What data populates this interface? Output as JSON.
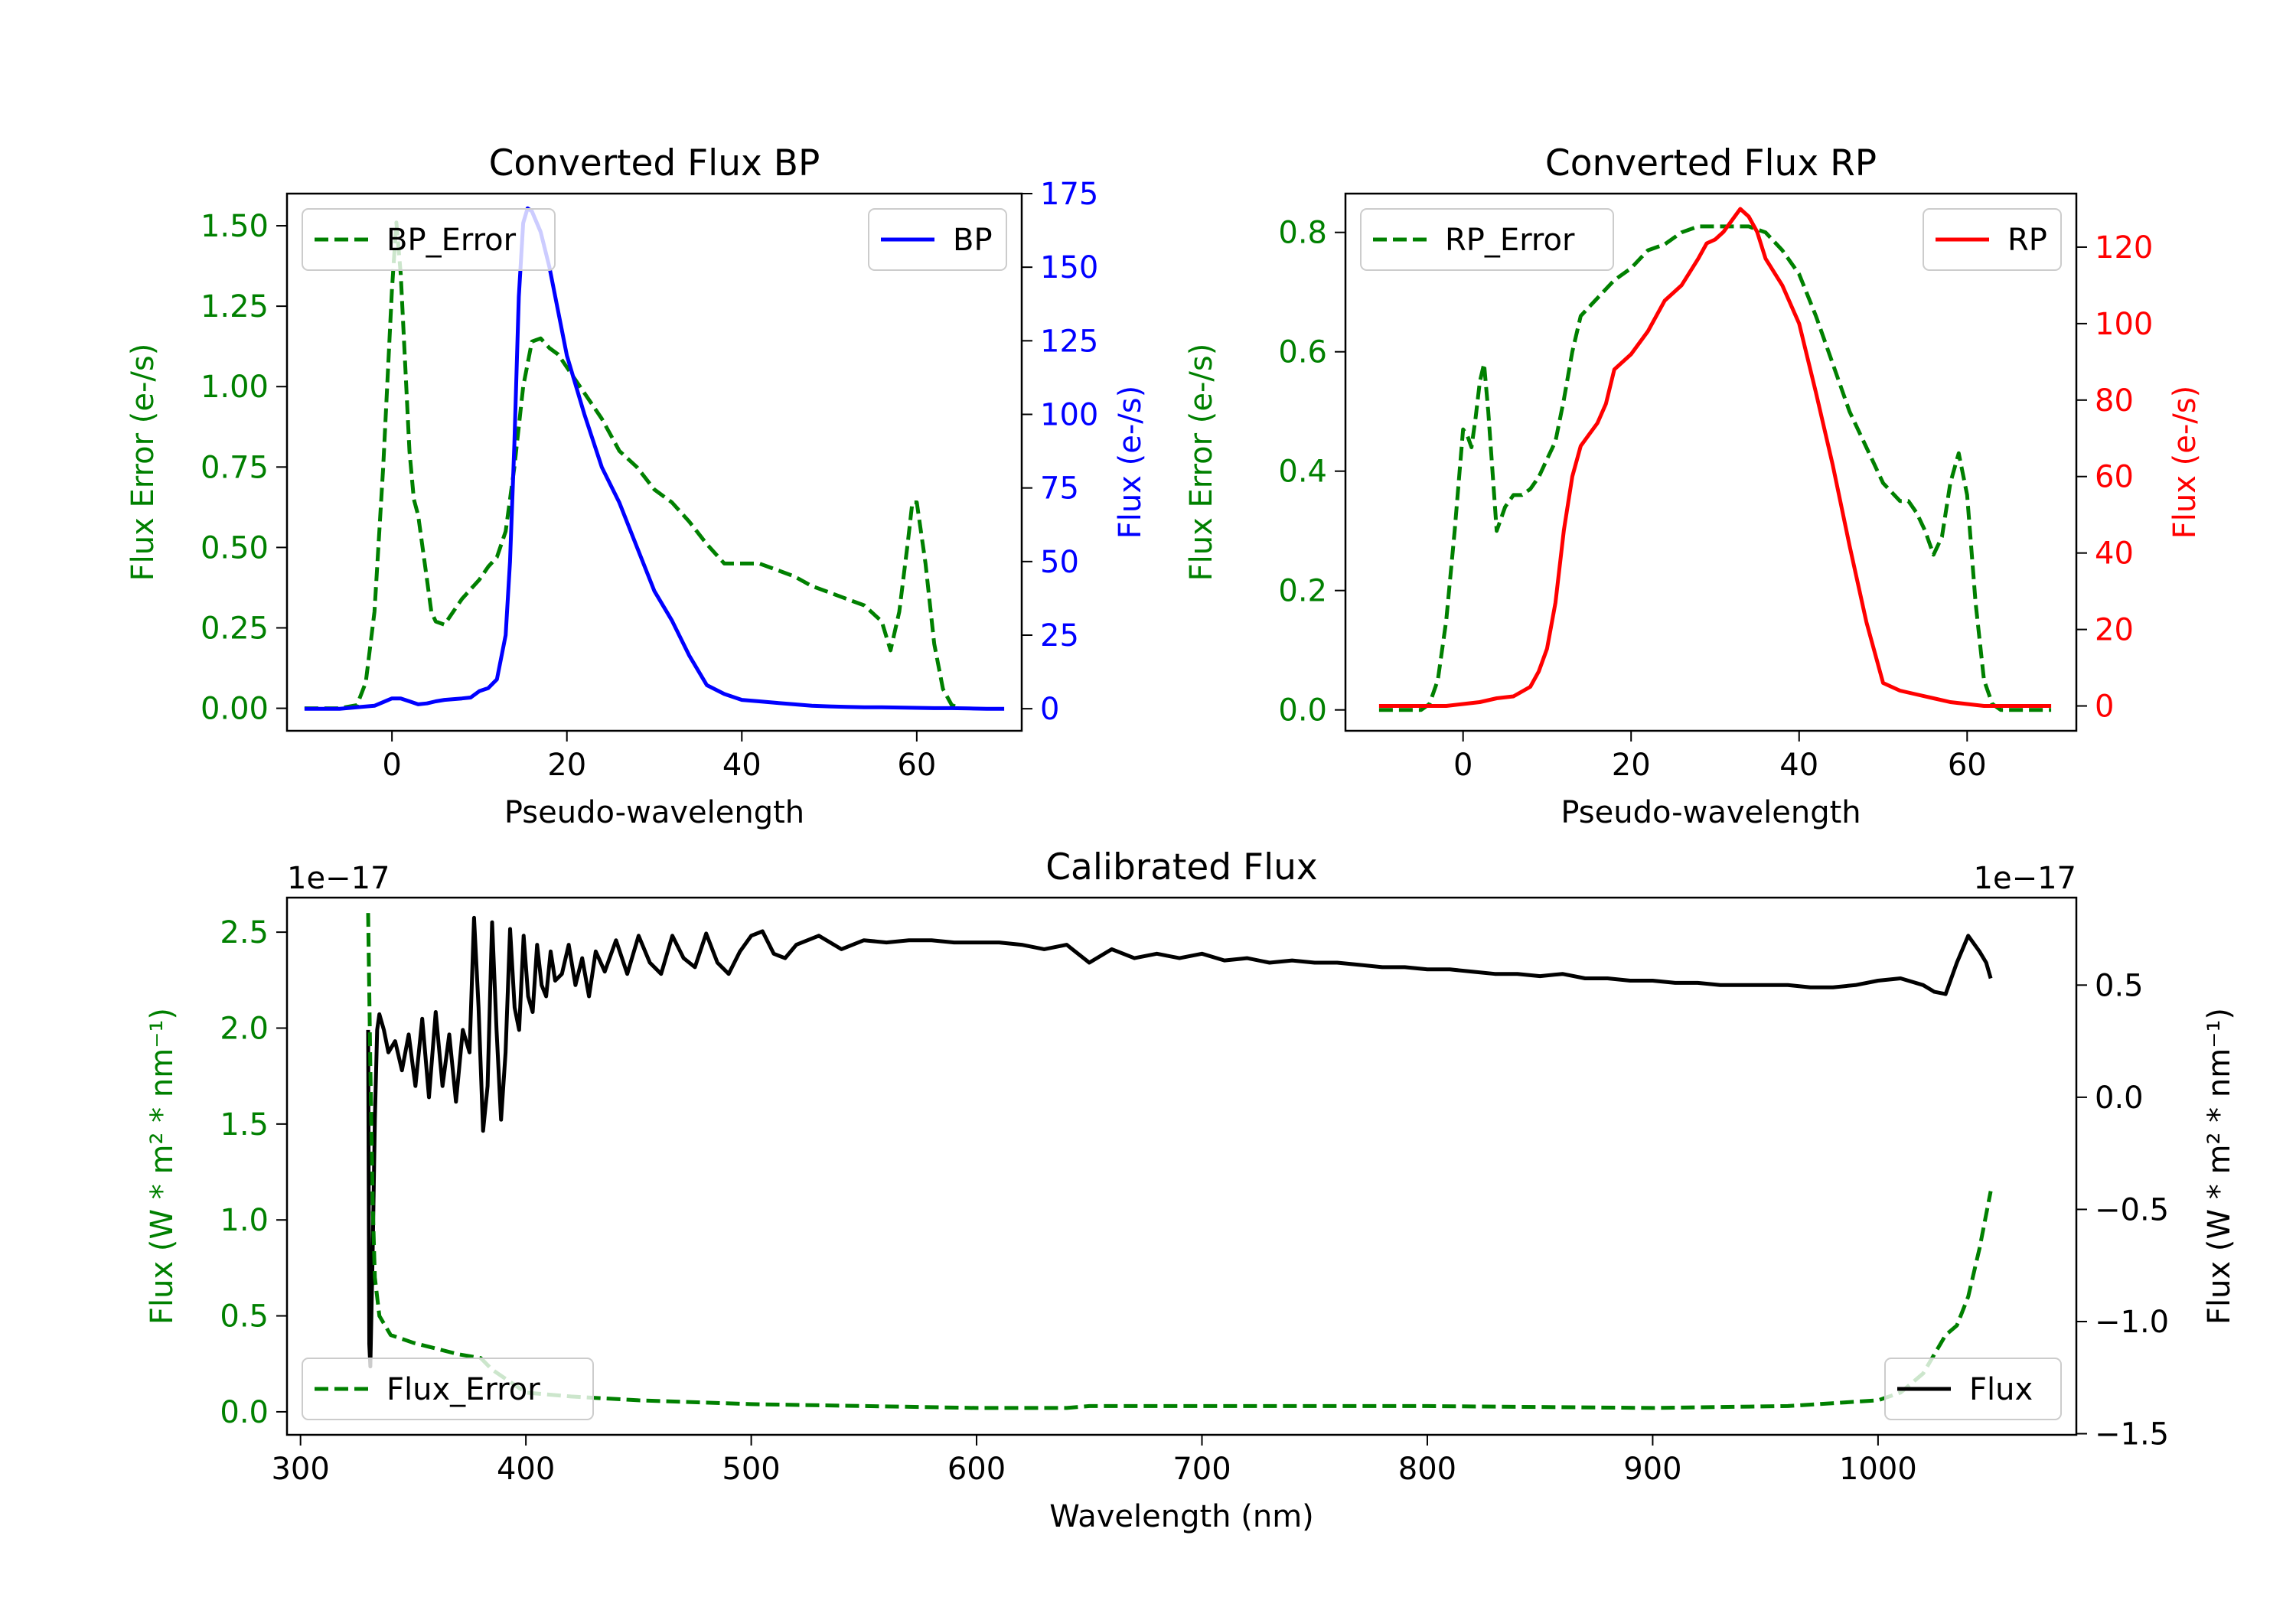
{
  "chart_data": [
    {
      "type": "line",
      "title": "Converted Flux BP",
      "xlabel": "Pseudo-wavelength",
      "ylabel_left": "Flux Error (e-/s)",
      "ylabel_right": "Flux (e-/s)",
      "xlim": [
        -12,
        72
      ],
      "ylim_left": [
        -0.07,
        1.6
      ],
      "ylim_right": [
        -7.5,
        175
      ],
      "x_ticks": [
        0,
        20,
        40,
        60
      ],
      "y_ticks_left": [
        "0.00",
        "0.25",
        "0.50",
        "0.75",
        "1.00",
        "1.25",
        "1.50"
      ],
      "y_ticks_right": [
        0,
        25,
        50,
        75,
        100,
        125,
        150,
        175
      ],
      "legend_left_position": "upper left",
      "legend_right_position": "upper right",
      "series": [
        {
          "name": "BP_Error",
          "axis": "left",
          "style": "dashed",
          "color": "#008000",
          "x": [
            -10,
            -6,
            -4,
            -3,
            -2,
            -1,
            0,
            0.5,
            1,
            2,
            2.5,
            3,
            4,
            4.5,
            5,
            6,
            7,
            8,
            9,
            10,
            11,
            12,
            13,
            14,
            15,
            16,
            17,
            18,
            19,
            20,
            22,
            24,
            26,
            28,
            30,
            32,
            34,
            36,
            38,
            40,
            42,
            44,
            46,
            48,
            50,
            52,
            54,
            56,
            57,
            58,
            59,
            59.5,
            60,
            61,
            62,
            63,
            64,
            65
          ],
          "values": [
            0.0,
            0.0,
            0.01,
            0.08,
            0.3,
            0.75,
            1.3,
            1.51,
            1.35,
            0.8,
            0.65,
            0.6,
            0.4,
            0.3,
            0.27,
            0.26,
            0.3,
            0.34,
            0.37,
            0.4,
            0.44,
            0.47,
            0.55,
            0.75,
            1.0,
            1.14,
            1.15,
            1.12,
            1.1,
            1.06,
            0.98,
            0.9,
            0.8,
            0.75,
            0.68,
            0.64,
            0.58,
            0.51,
            0.45,
            0.45,
            0.45,
            0.43,
            0.41,
            0.38,
            0.36,
            0.34,
            0.32,
            0.27,
            0.18,
            0.3,
            0.52,
            0.64,
            0.64,
            0.45,
            0.2,
            0.06,
            0.01,
            0.0
          ]
        },
        {
          "name": "BP",
          "axis": "right",
          "style": "solid",
          "color": "#0000ff",
          "x": [
            -10,
            -6,
            -4,
            -2,
            0,
            1,
            2,
            3,
            4,
            5,
            6,
            8,
            9,
            10,
            11,
            12,
            13,
            13.5,
            14,
            14.5,
            15,
            15.5,
            16,
            17,
            18,
            19,
            20,
            22,
            24,
            26,
            28,
            30,
            32,
            34,
            36,
            38,
            40,
            42,
            44,
            46,
            48,
            50,
            52,
            54,
            56,
            58,
            60,
            62,
            64,
            66,
            68,
            70
          ],
          "values": [
            0,
            0,
            0.5,
            1,
            3.5,
            3.5,
            2.5,
            1.5,
            1.8,
            2.5,
            3,
            3.5,
            3.8,
            6,
            7,
            10,
            25,
            50,
            90,
            140,
            165,
            170,
            169,
            162,
            150,
            135,
            120,
            100,
            82,
            70,
            55,
            40,
            30,
            18,
            8,
            5,
            3,
            2.5,
            2,
            1.5,
            1,
            0.8,
            0.6,
            0.5,
            0.5,
            0.4,
            0.3,
            0.2,
            0.2,
            0.1,
            0,
            0
          ]
        }
      ]
    },
    {
      "type": "line",
      "title": "Converted Flux RP",
      "xlabel": "Pseudo-wavelength",
      "ylabel_left": "Flux Error (e-/s)",
      "ylabel_right": "Flux (e-/s)",
      "xlim": [
        -14,
        73
      ],
      "ylim_left": [
        -0.035,
        0.865
      ],
      "ylim_right": [
        -6.5,
        134
      ],
      "x_ticks": [
        0,
        20,
        40,
        60
      ],
      "y_ticks_left": [
        "0.0",
        "0.2",
        "0.4",
        "0.6",
        "0.8"
      ],
      "y_ticks_right": [
        0,
        20,
        40,
        60,
        80,
        100,
        120
      ],
      "legend_left_position": "upper left",
      "legend_right_position": "upper right",
      "series": [
        {
          "name": "RP_Error",
          "axis": "left",
          "style": "dashed",
          "color": "#008000",
          "x": [
            -10,
            -5,
            -4,
            -3,
            -2,
            -1,
            0,
            0.5,
            1,
            1.5,
            2,
            2.5,
            3,
            3.5,
            4,
            5,
            6,
            7,
            8,
            9,
            10,
            11,
            12,
            13,
            14,
            16,
            18,
            20,
            22,
            24,
            26,
            28,
            30,
            32,
            34,
            36,
            38,
            40,
            42,
            44,
            46,
            48,
            50,
            52,
            53,
            54,
            55,
            56,
            57,
            58,
            59,
            60,
            61,
            62,
            63,
            64,
            65,
            66,
            70
          ],
          "values": [
            0.0,
            0.0,
            0.01,
            0.05,
            0.15,
            0.3,
            0.47,
            0.46,
            0.44,
            0.49,
            0.55,
            0.58,
            0.5,
            0.4,
            0.3,
            0.34,
            0.36,
            0.36,
            0.37,
            0.39,
            0.42,
            0.45,
            0.52,
            0.6,
            0.66,
            0.69,
            0.72,
            0.74,
            0.77,
            0.78,
            0.8,
            0.81,
            0.81,
            0.81,
            0.81,
            0.8,
            0.77,
            0.73,
            0.66,
            0.58,
            0.5,
            0.44,
            0.38,
            0.35,
            0.35,
            0.33,
            0.3,
            0.26,
            0.29,
            0.38,
            0.43,
            0.36,
            0.18,
            0.05,
            0.01,
            0.0,
            0.0,
            0.0,
            0.0
          ]
        },
        {
          "name": "RP",
          "axis": "right",
          "style": "solid",
          "color": "#ff0000",
          "x": [
            -10,
            -4,
            -2,
            0,
            2,
            4,
            6,
            8,
            9,
            10,
            11,
            12,
            13,
            14,
            15,
            16,
            17,
            18,
            20,
            22,
            24,
            26,
            28,
            29,
            30,
            31,
            32,
            33,
            34,
            35,
            36,
            38,
            40,
            42,
            44,
            46,
            48,
            50,
            52,
            54,
            56,
            58,
            60,
            62,
            64,
            66,
            70
          ],
          "values": [
            0,
            0,
            0,
            0.5,
            1,
            2,
            2.5,
            5,
            9,
            15,
            27,
            46,
            60,
            68,
            71,
            74,
            79,
            88,
            92,
            98,
            106,
            110,
            117,
            121,
            122,
            124,
            127,
            130,
            128,
            124,
            117,
            110,
            100,
            82,
            63,
            42,
            22,
            6,
            4,
            3,
            2,
            1,
            0.5,
            0,
            0,
            0,
            0
          ]
        }
      ]
    },
    {
      "type": "line",
      "title": "Calibrated Flux",
      "xlabel": "Wavelength (nm)",
      "ylabel_left": "Flux (W * m² * nm⁻¹)",
      "ylabel_right": "Flux (W * m² * nm⁻¹)",
      "offset_label_left": "1e−17",
      "offset_label_right": "1e−17",
      "xlim": [
        294,
        1088
      ],
      "ylim_left": [
        -0.12,
        2.68
      ],
      "ylim_right": [
        -1.505,
        0.89
      ],
      "x_ticks": [
        300,
        400,
        500,
        600,
        700,
        800,
        900,
        1000
      ],
      "y_ticks_left": [
        "0.0",
        "0.5",
        "1.0",
        "1.5",
        "2.0",
        "2.5"
      ],
      "y_ticks_right": [
        "−1.5",
        "−1.0",
        "−0.5",
        "0.0",
        "0.5"
      ],
      "legend_left_position": "lower left",
      "legend_right_position": "lower right",
      "series": [
        {
          "name": "Flux",
          "axis": "right",
          "style": "solid",
          "color": "#000000",
          "x": [
            330,
            330.5,
            331,
            332,
            333,
            334,
            335,
            337,
            339,
            342,
            345,
            348,
            351,
            354,
            357,
            360,
            363,
            366,
            369,
            372,
            375,
            377,
            379,
            381,
            383,
            385,
            387,
            389,
            391,
            393,
            395,
            397,
            399,
            401,
            403,
            405,
            407,
            409,
            411,
            413,
            416,
            419,
            422,
            425,
            428,
            431,
            435,
            440,
            445,
            450,
            455,
            460,
            465,
            470,
            475,
            480,
            485,
            490,
            495,
            500,
            505,
            510,
            515,
            520,
            530,
            540,
            550,
            560,
            570,
            580,
            590,
            600,
            610,
            620,
            630,
            640,
            650,
            660,
            670,
            680,
            690,
            700,
            710,
            720,
            730,
            740,
            750,
            760,
            770,
            780,
            790,
            800,
            810,
            820,
            830,
            840,
            850,
            860,
            870,
            880,
            890,
            900,
            910,
            920,
            930,
            940,
            950,
            960,
            970,
            980,
            990,
            1000,
            1010,
            1020,
            1025,
            1030,
            1035,
            1040,
            1045,
            1048,
            1050
          ],
          "values": [
            0.3,
            -1.1,
            -1.2,
            -0.7,
            -0.1,
            0.3,
            0.37,
            0.3,
            0.2,
            0.25,
            0.12,
            0.28,
            0.05,
            0.35,
            0.0,
            0.38,
            0.05,
            0.28,
            -0.02,
            0.3,
            0.2,
            0.8,
            0.4,
            -0.15,
            0.05,
            0.78,
            0.3,
            -0.1,
            0.2,
            0.75,
            0.4,
            0.3,
            0.72,
            0.45,
            0.38,
            0.68,
            0.5,
            0.45,
            0.65,
            0.52,
            0.55,
            0.68,
            0.5,
            0.62,
            0.45,
            0.65,
            0.56,
            0.7,
            0.55,
            0.72,
            0.6,
            0.55,
            0.72,
            0.62,
            0.58,
            0.73,
            0.6,
            0.55,
            0.65,
            0.72,
            0.74,
            0.64,
            0.62,
            0.68,
            0.72,
            0.66,
            0.7,
            0.69,
            0.7,
            0.7,
            0.69,
            0.69,
            0.69,
            0.68,
            0.66,
            0.68,
            0.6,
            0.66,
            0.62,
            0.64,
            0.62,
            0.64,
            0.61,
            0.62,
            0.6,
            0.61,
            0.6,
            0.6,
            0.59,
            0.58,
            0.58,
            0.57,
            0.57,
            0.56,
            0.55,
            0.55,
            0.54,
            0.55,
            0.53,
            0.53,
            0.52,
            0.52,
            0.51,
            0.51,
            0.5,
            0.5,
            0.5,
            0.5,
            0.49,
            0.49,
            0.5,
            0.52,
            0.53,
            0.5,
            0.47,
            0.46,
            0.6,
            0.72,
            0.65,
            0.6,
            0.53
          ]
        },
        {
          "name": "Flux_Error",
          "axis": "left",
          "style": "dashed",
          "color": "#008000",
          "x": [
            330,
            331,
            332,
            333,
            335,
            340,
            345,
            350,
            360,
            370,
            380,
            385,
            390,
            400,
            420,
            450,
            500,
            550,
            600,
            640,
            650,
            700,
            800,
            900,
            960,
            1000,
            1010,
            1020,
            1030,
            1035,
            1040,
            1045,
            1050
          ],
          "values": [
            2.6,
            1.8,
            1.1,
            0.7,
            0.5,
            0.4,
            0.38,
            0.36,
            0.33,
            0.3,
            0.28,
            0.22,
            0.18,
            0.1,
            0.08,
            0.06,
            0.04,
            0.03,
            0.02,
            0.02,
            0.03,
            0.03,
            0.03,
            0.02,
            0.03,
            0.06,
            0.1,
            0.2,
            0.4,
            0.45,
            0.6,
            0.85,
            1.15
          ]
        }
      ]
    }
  ]
}
